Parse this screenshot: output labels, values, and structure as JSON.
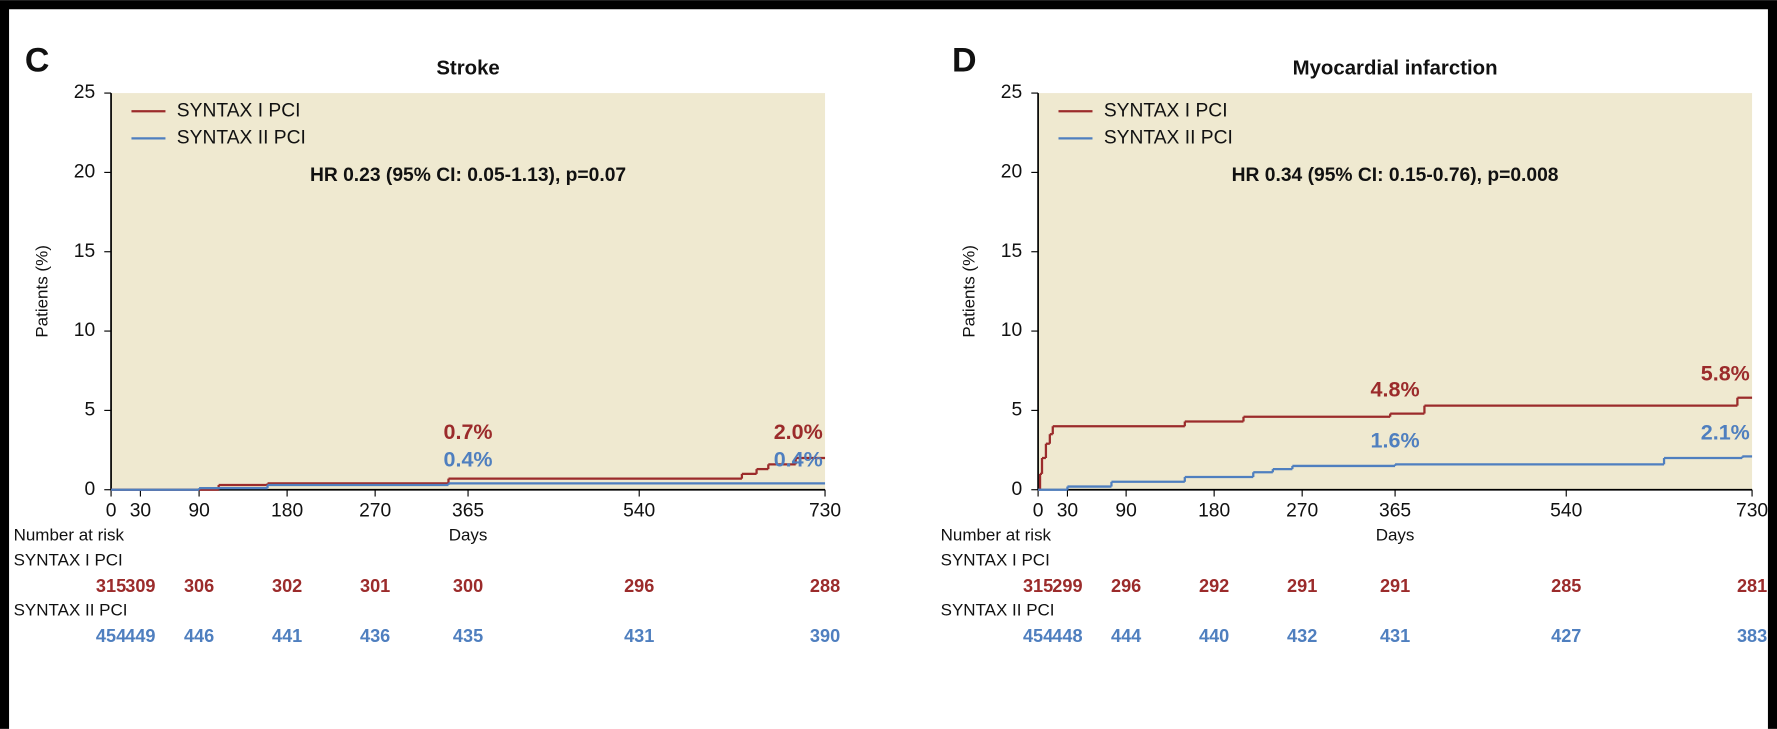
{
  "chart_data": [
    {
      "type": "line",
      "step": true,
      "panel": "C",
      "title": "Stroke",
      "ylabel": "Patients (%)",
      "xlabel": "Days",
      "xlim": [
        0,
        730
      ],
      "xticks": [
        0,
        30,
        90,
        180,
        270,
        365,
        540,
        730
      ],
      "ylim": [
        0,
        25
      ],
      "yticks": [
        0,
        5,
        10,
        15,
        20,
        25
      ],
      "grid": false,
      "legend": "upper left",
      "background": "#efe9d0",
      "annotation": "HR 0.23 (95% CI: 0.05-1.13), p=0.07",
      "series": [
        {
          "name": "SYNTAX I PCI",
          "color": "#9b2b2b",
          "x": [
            0,
            110,
            160,
            345,
            645,
            660,
            672,
            700
          ],
          "values": [
            0,
            0.3,
            0.4,
            0.7,
            1.0,
            1.3,
            1.6,
            2.0
          ],
          "labels": [
            {
              "x": 365,
              "value": 0.7,
              "label": "0.7%"
            },
            {
              "x": 730,
              "value": 2.0,
              "label": "2.0%"
            }
          ]
        },
        {
          "name": "SYNTAX II PCI",
          "color": "#4f7fbf",
          "x": [
            0,
            90,
            160,
            345
          ],
          "values": [
            0,
            0.1,
            0.3,
            0.4
          ],
          "labels": [
            {
              "x": 365,
              "value": 0.4,
              "label": "0.4%"
            },
            {
              "x": 730,
              "value": 0.4,
              "label": "0.4%"
            }
          ]
        }
      ],
      "risk_table": {
        "title": "Number at risk",
        "rows": [
          {
            "name": "SYNTAX I PCI",
            "values": [
              315,
              309,
              306,
              302,
              301,
              300,
              296,
              288
            ]
          },
          {
            "name": "SYNTAX II PCI",
            "values": [
              454,
              449,
              446,
              441,
              436,
              435,
              431,
              390
            ]
          }
        ]
      }
    },
    {
      "type": "line",
      "step": true,
      "panel": "D",
      "title": "Myocardial infarction",
      "ylabel": "Patients (%)",
      "xlabel": "Days",
      "xlim": [
        0,
        730
      ],
      "xticks": [
        0,
        30,
        90,
        180,
        270,
        365,
        540,
        730
      ],
      "ylim": [
        0,
        25
      ],
      "yticks": [
        0,
        5,
        10,
        15,
        20,
        25
      ],
      "grid": false,
      "legend": "upper left",
      "background": "#efe9d0",
      "annotation": "HR 0.34 (95% CI: 0.15-0.76), p=0.008",
      "series": [
        {
          "name": "SYNTAX I PCI",
          "color": "#9b2b2b",
          "x": [
            0,
            2,
            4,
            8,
            12,
            15,
            150,
            210,
            360,
            395,
            715
          ],
          "values": [
            0,
            1.0,
            2.0,
            2.9,
            3.5,
            4.0,
            4.3,
            4.6,
            4.8,
            5.3,
            5.8
          ],
          "labels": [
            {
              "x": 365,
              "value": 4.8,
              "label": "4.8%"
            },
            {
              "x": 730,
              "value": 5.8,
              "label": "5.8%"
            }
          ]
        },
        {
          "name": "SYNTAX II PCI",
          "color": "#4f7fbf",
          "x": [
            0,
            30,
            75,
            150,
            220,
            240,
            260,
            365,
            640,
            720
          ],
          "values": [
            0,
            0.2,
            0.5,
            0.8,
            1.1,
            1.3,
            1.5,
            1.6,
            2.0,
            2.1
          ],
          "labels": [
            {
              "x": 365,
              "value": 1.6,
              "label": "1.6%"
            },
            {
              "x": 730,
              "value": 2.1,
              "label": "2.1%"
            }
          ]
        }
      ],
      "risk_table": {
        "title": "Number at risk",
        "rows": [
          {
            "name": "SYNTAX I PCI",
            "values": [
              315,
              299,
              296,
              292,
              291,
              291,
              285,
              281
            ]
          },
          {
            "name": "SYNTAX II PCI",
            "values": [
              454,
              448,
              444,
              440,
              432,
              431,
              427,
              383
            ]
          }
        ]
      }
    }
  ]
}
